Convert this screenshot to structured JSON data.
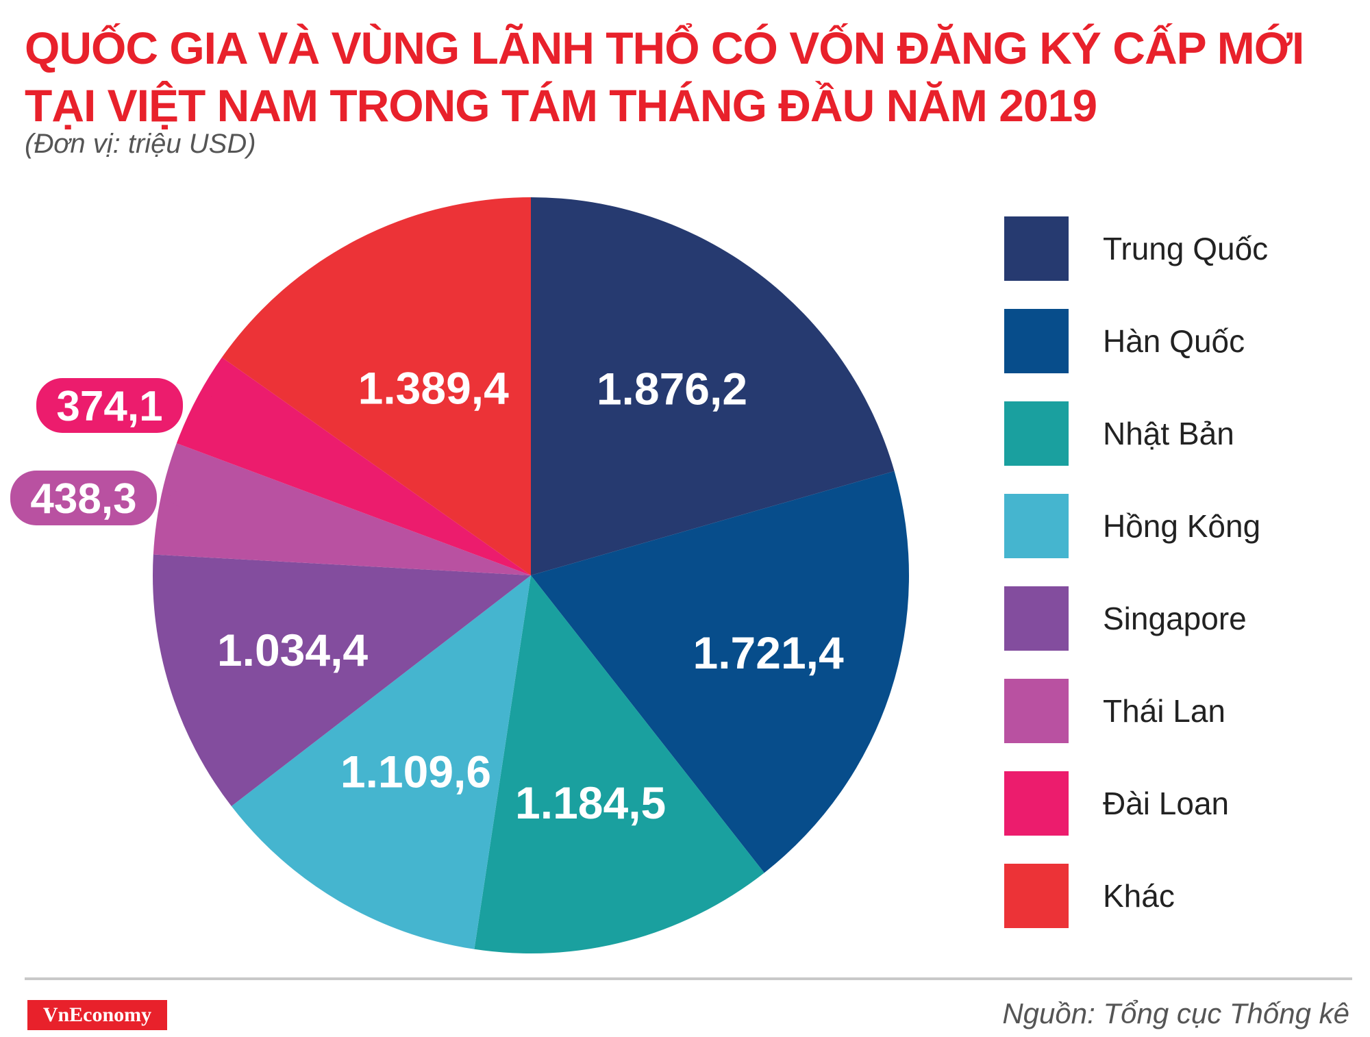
{
  "header": {
    "title_line1": "QUỐC GIA VÀ VÙNG LÃNH THỔ CÓ VỐN ĐĂNG KÝ CẤP MỚI",
    "title_line2": "TẠI VIỆT NAM TRONG TÁM THÁNG ĐẦU NĂM 2019",
    "unit": "(Đơn vị: triệu USD)"
  },
  "chart_data": {
    "type": "pie",
    "start_angle_deg": 0,
    "direction": "clockwise",
    "slices": [
      {
        "label": "Trung Quốc",
        "value": 1876.2,
        "value_label": "1.876,2",
        "color": "#263a70"
      },
      {
        "label": "Hàn Quốc",
        "value": 1721.4,
        "value_label": "1.721,4",
        "color": "#074d8b"
      },
      {
        "label": "Nhật Bản",
        "value": 1184.5,
        "value_label": "1.184,5",
        "color": "#1aa09f"
      },
      {
        "label": "Hồng Kông",
        "value": 1109.6,
        "value_label": "1.109,6",
        "color": "#45b5cf"
      },
      {
        "label": "Singapore",
        "value": 1034.4,
        "value_label": "1.034,4",
        "color": "#834d9e"
      },
      {
        "label": "Thái Lan",
        "value": 438.3,
        "value_label": "438,3",
        "color": "#b951a1"
      },
      {
        "label": "Đài Loan",
        "value": 374.1,
        "value_label": "374,1",
        "color": "#ec1c6d"
      },
      {
        "label": "Khác",
        "value": 1389.4,
        "value_label": "1.389,4",
        "color": "#ec3337"
      }
    ],
    "legend_position": "right"
  },
  "footer": {
    "logo_text": "VnEconomy",
    "source": "Nguồn: Tổng cục Thống kê"
  }
}
